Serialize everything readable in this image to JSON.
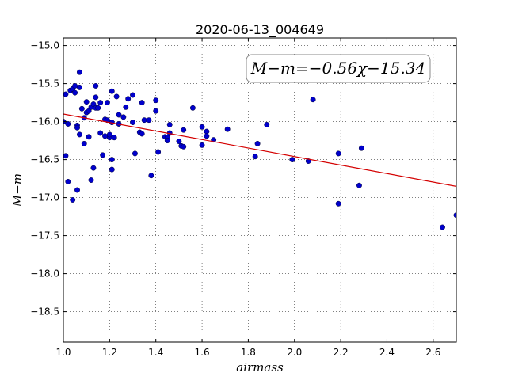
{
  "chart_data": {
    "type": "scatter",
    "title": "2020-06-13_004649",
    "xlabel": "airmass",
    "ylabel": "M−m",
    "xlim": [
      1.0,
      2.7
    ],
    "ylim": [
      -18.9,
      -14.9
    ],
    "y_inverted": true,
    "xticks": [
      1.0,
      1.2,
      1.4,
      1.6,
      1.8,
      2.0,
      2.2,
      2.4,
      2.6
    ],
    "xtick_labels": [
      "1.0",
      "1.2",
      "1.4",
      "1.6",
      "1.8",
      "2.0",
      "2.2",
      "2.4",
      "2.6"
    ],
    "yticks": [
      -15.0,
      -15.5,
      -16.0,
      -16.5,
      -17.0,
      -17.5,
      -18.0,
      -18.5
    ],
    "ytick_labels": [
      "−15.0",
      "−15.5",
      "−16.0",
      "−16.5",
      "−17.0",
      "−17.5",
      "−18.0",
      "−18.5"
    ],
    "grid": true,
    "annotation": "M−m=−0.56χ−15.34",
    "fit_line": {
      "slope": -0.56,
      "intercept": -15.34,
      "color": "#d40000"
    },
    "point_color": "#0000cc",
    "points": [
      [
        1.0,
        -16.0
      ],
      [
        1.01,
        -15.64
      ],
      [
        1.01,
        -16.45
      ],
      [
        1.02,
        -16.03
      ],
      [
        1.02,
        -16.79
      ],
      [
        1.03,
        -15.59
      ],
      [
        1.04,
        -15.57
      ],
      [
        1.04,
        -17.03
      ],
      [
        1.05,
        -15.53
      ],
      [
        1.05,
        -15.62
      ],
      [
        1.06,
        -16.05
      ],
      [
        1.06,
        -16.08
      ],
      [
        1.06,
        -16.9
      ],
      [
        1.07,
        -15.35
      ],
      [
        1.07,
        -15.55
      ],
      [
        1.07,
        -16.17
      ],
      [
        1.08,
        -15.83
      ],
      [
        1.09,
        -16.29
      ],
      [
        1.09,
        -15.95
      ],
      [
        1.1,
        -15.88
      ],
      [
        1.1,
        -15.74
      ],
      [
        1.11,
        -16.2
      ],
      [
        1.11,
        -15.86
      ],
      [
        1.12,
        -15.81
      ],
      [
        1.12,
        -16.77
      ],
      [
        1.13,
        -15.77
      ],
      [
        1.13,
        -16.61
      ],
      [
        1.14,
        -15.82
      ],
      [
        1.14,
        -15.68
      ],
      [
        1.14,
        -15.53
      ],
      [
        1.15,
        -15.82
      ],
      [
        1.16,
        -16.15
      ],
      [
        1.16,
        -15.75
      ],
      [
        1.17,
        -16.44
      ],
      [
        1.18,
        -15.97
      ],
      [
        1.18,
        -16.19
      ],
      [
        1.19,
        -15.75
      ],
      [
        1.19,
        -15.98
      ],
      [
        1.2,
        -16.21
      ],
      [
        1.2,
        -16.17
      ],
      [
        1.21,
        -15.6
      ],
      [
        1.21,
        -16.01
      ],
      [
        1.21,
        -16.5
      ],
      [
        1.21,
        -16.63
      ],
      [
        1.22,
        -16.21
      ],
      [
        1.23,
        -15.67
      ],
      [
        1.24,
        -15.91
      ],
      [
        1.24,
        -16.03
      ],
      [
        1.26,
        -15.94
      ],
      [
        1.27,
        -15.81
      ],
      [
        1.28,
        -15.7
      ],
      [
        1.3,
        -16.01
      ],
      [
        1.3,
        -15.65
      ],
      [
        1.31,
        -16.42
      ],
      [
        1.33,
        -16.14
      ],
      [
        1.34,
        -16.16
      ],
      [
        1.34,
        -15.75
      ],
      [
        1.35,
        -15.98
      ],
      [
        1.37,
        -15.98
      ],
      [
        1.38,
        -16.71
      ],
      [
        1.4,
        -15.72
      ],
      [
        1.4,
        -15.86
      ],
      [
        1.41,
        -16.4
      ],
      [
        1.44,
        -16.2
      ],
      [
        1.45,
        -16.21
      ],
      [
        1.45,
        -16.25
      ],
      [
        1.46,
        -16.04
      ],
      [
        1.46,
        -16.15
      ],
      [
        1.5,
        -16.26
      ],
      [
        1.51,
        -16.32
      ],
      [
        1.52,
        -16.11
      ],
      [
        1.52,
        -16.33
      ],
      [
        1.56,
        -15.82
      ],
      [
        1.6,
        -16.31
      ],
      [
        1.6,
        -16.07
      ],
      [
        1.62,
        -16.13
      ],
      [
        1.62,
        -16.19
      ],
      [
        1.65,
        -16.24
      ],
      [
        1.71,
        -16.1
      ],
      [
        1.83,
        -16.46
      ],
      [
        1.84,
        -16.29
      ],
      [
        1.88,
        -16.04
      ],
      [
        1.99,
        -16.5
      ],
      [
        2.06,
        -16.52
      ],
      [
        2.08,
        -15.71
      ],
      [
        2.19,
        -16.42
      ],
      [
        2.19,
        -17.08
      ],
      [
        2.28,
        -16.84
      ],
      [
        2.29,
        -16.35
      ],
      [
        2.64,
        -17.39
      ],
      [
        2.7,
        -17.23
      ]
    ]
  }
}
